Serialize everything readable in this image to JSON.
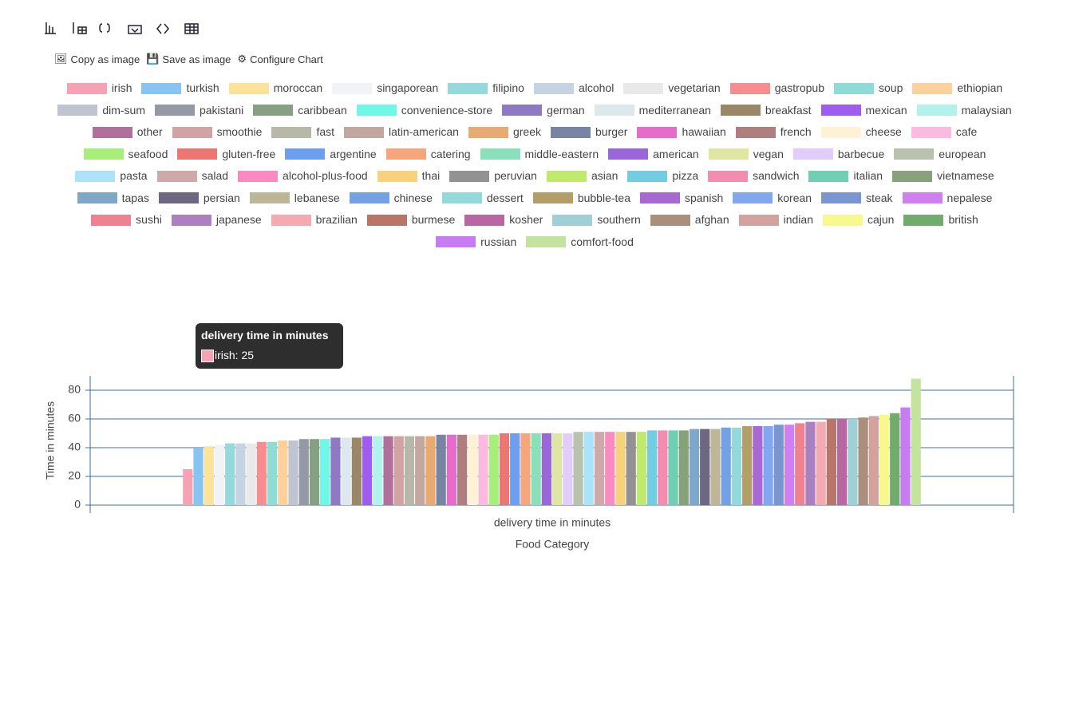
{
  "toolbar": {
    "copy": "Copy as image",
    "save": "Save as image",
    "configure": "Configure Chart"
  },
  "chart_data": {
    "type": "bar",
    "categories": [
      "delivery time in minutes"
    ],
    "xlabel": "Food Category",
    "ylabel": "Time in minutes",
    "ylim": [
      0,
      90
    ],
    "yticks": [
      0,
      20,
      40,
      60,
      80
    ],
    "grid": true,
    "tooltip": {
      "title": "delivery time in minutes",
      "text": "irish: 25"
    },
    "series": [
      {
        "name": "irish",
        "color": "#f7a1b5",
        "values": [
          25
        ]
      },
      {
        "name": "turkish",
        "color": "#88c4f2",
        "values": [
          40
        ]
      },
      {
        "name": "moroccan",
        "color": "#fde39a",
        "values": [
          41
        ]
      },
      {
        "name": "singaporean",
        "color": "#f2f3f6",
        "values": [
          42
        ]
      },
      {
        "name": "filipino",
        "color": "#96d9dc",
        "values": [
          43
        ]
      },
      {
        "name": "alcohol",
        "color": "#c5d3e3",
        "values": [
          43
        ]
      },
      {
        "name": "vegetarian",
        "color": "#e9e9ea",
        "values": [
          43
        ]
      },
      {
        "name": "gastropub",
        "color": "#f78d8f",
        "values": [
          44
        ]
      },
      {
        "name": "soup",
        "color": "#8fdbd6",
        "values": [
          44
        ]
      },
      {
        "name": "ethiopian",
        "color": "#fdd19d",
        "values": [
          45
        ]
      },
      {
        "name": "dim-sum",
        "color": "#c0c4d1",
        "values": [
          45
        ]
      },
      {
        "name": "pakistani",
        "color": "#939aa5",
        "values": [
          46
        ]
      },
      {
        "name": "caribbean",
        "color": "#86a082",
        "values": [
          46
        ]
      },
      {
        "name": "convenience-store",
        "color": "#6ff7e8",
        "values": [
          46
        ]
      },
      {
        "name": "german",
        "color": "#9079c4",
        "values": [
          47
        ]
      },
      {
        "name": "mediterranean",
        "color": "#dde8ee",
        "values": [
          47
        ]
      },
      {
        "name": "breakfast",
        "color": "#9a8766",
        "values": [
          47
        ]
      },
      {
        "name": "mexican",
        "color": "#9e5cf0",
        "values": [
          48
        ]
      },
      {
        "name": "malaysian",
        "color": "#b2f2ec",
        "values": [
          48
        ]
      },
      {
        "name": "other",
        "color": "#b1709c",
        "values": [
          48
        ]
      },
      {
        "name": "smoothie",
        "color": "#d3a3a3",
        "values": [
          48
        ]
      },
      {
        "name": "fast",
        "color": "#b8b8a8",
        "values": [
          48
        ]
      },
      {
        "name": "latin-american",
        "color": "#c4a6a0",
        "values": [
          48
        ]
      },
      {
        "name": "greek",
        "color": "#e8aa70",
        "values": [
          48
        ]
      },
      {
        "name": "burger",
        "color": "#7785a3",
        "values": [
          49
        ]
      },
      {
        "name": "hawaiian",
        "color": "#e66bcb",
        "values": [
          49
        ]
      },
      {
        "name": "french",
        "color": "#b07e7e",
        "values": [
          49
        ]
      },
      {
        "name": "cheese",
        "color": "#fdf1d6",
        "values": [
          49
        ]
      },
      {
        "name": "cafe",
        "color": "#fdbadf",
        "values": [
          49
        ]
      },
      {
        "name": "seafood",
        "color": "#a7ee7b",
        "values": [
          49
        ]
      },
      {
        "name": "gluten-free",
        "color": "#ea7772",
        "values": [
          50
        ]
      },
      {
        "name": "argentine",
        "color": "#6d9ef0",
        "values": [
          50
        ]
      },
      {
        "name": "catering",
        "color": "#f7a57d",
        "values": [
          50
        ]
      },
      {
        "name": "middle-eastern",
        "color": "#8be0bb",
        "values": [
          50
        ]
      },
      {
        "name": "american",
        "color": "#9a66d8",
        "values": [
          50
        ]
      },
      {
        "name": "vegan",
        "color": "#dfe6a3",
        "values": [
          50
        ]
      },
      {
        "name": "barbecue",
        "color": "#e0cdf9",
        "values": [
          50
        ]
      },
      {
        "name": "european",
        "color": "#b8c2ad",
        "values": [
          51
        ]
      },
      {
        "name": "pasta",
        "color": "#abe3fb",
        "values": [
          51
        ]
      },
      {
        "name": "salad",
        "color": "#cfa8a8",
        "values": [
          51
        ]
      },
      {
        "name": "alcohol-plus-food",
        "color": "#f98bc0",
        "values": [
          51
        ]
      },
      {
        "name": "thai",
        "color": "#f5d27b",
        "values": [
          51
        ]
      },
      {
        "name": "peruvian",
        "color": "#929292",
        "values": [
          51
        ]
      },
      {
        "name": "asian",
        "color": "#bfea6b",
        "values": [
          51
        ]
      },
      {
        "name": "pizza",
        "color": "#72cde2",
        "values": [
          52
        ]
      },
      {
        "name": "sandwich",
        "color": "#f48cb0",
        "values": [
          52
        ]
      },
      {
        "name": "italian",
        "color": "#70cfb3",
        "values": [
          52
        ]
      },
      {
        "name": "vietnamese",
        "color": "#87a17b",
        "values": [
          52
        ]
      },
      {
        "name": "tapas",
        "color": "#7fa8c8",
        "values": [
          53
        ]
      },
      {
        "name": "persian",
        "color": "#6d6782",
        "values": [
          53
        ]
      },
      {
        "name": "lebanese",
        "color": "#bdb697",
        "values": [
          53
        ]
      },
      {
        "name": "chinese",
        "color": "#74a0e4",
        "values": [
          54
        ]
      },
      {
        "name": "dessert",
        "color": "#93d9db",
        "values": [
          54
        ]
      },
      {
        "name": "bubble-tea",
        "color": "#b49f68",
        "values": [
          55
        ]
      },
      {
        "name": "spanish",
        "color": "#a869d5",
        "values": [
          55
        ]
      },
      {
        "name": "korean",
        "color": "#81a7f1",
        "values": [
          55
        ]
      },
      {
        "name": "steak",
        "color": "#7a96d2",
        "values": [
          56
        ]
      },
      {
        "name": "nepalese",
        "color": "#d07ff2",
        "values": [
          56
        ]
      },
      {
        "name": "sushi",
        "color": "#ee8290",
        "values": [
          57
        ]
      },
      {
        "name": "japanese",
        "color": "#ac80c0",
        "values": [
          58
        ]
      },
      {
        "name": "brazilian",
        "color": "#f5a9b0",
        "values": [
          58
        ]
      },
      {
        "name": "burmese",
        "color": "#b97568",
        "values": [
          60
        ]
      },
      {
        "name": "kosher",
        "color": "#b867a2",
        "values": [
          60
        ]
      },
      {
        "name": "southern",
        "color": "#9fd0d6",
        "values": [
          60
        ]
      },
      {
        "name": "afghan",
        "color": "#a98f7c",
        "values": [
          61
        ]
      },
      {
        "name": "indian",
        "color": "#d3a29f",
        "values": [
          62
        ]
      },
      {
        "name": "cajun",
        "color": "#f7f98e",
        "values": [
          63
        ]
      },
      {
        "name": "british",
        "color": "#70ad6c",
        "values": [
          64
        ]
      },
      {
        "name": "russian",
        "color": "#c77cf2",
        "values": [
          68
        ]
      },
      {
        "name": "comfort-food",
        "color": "#c3e39f",
        "values": [
          88
        ]
      }
    ]
  }
}
